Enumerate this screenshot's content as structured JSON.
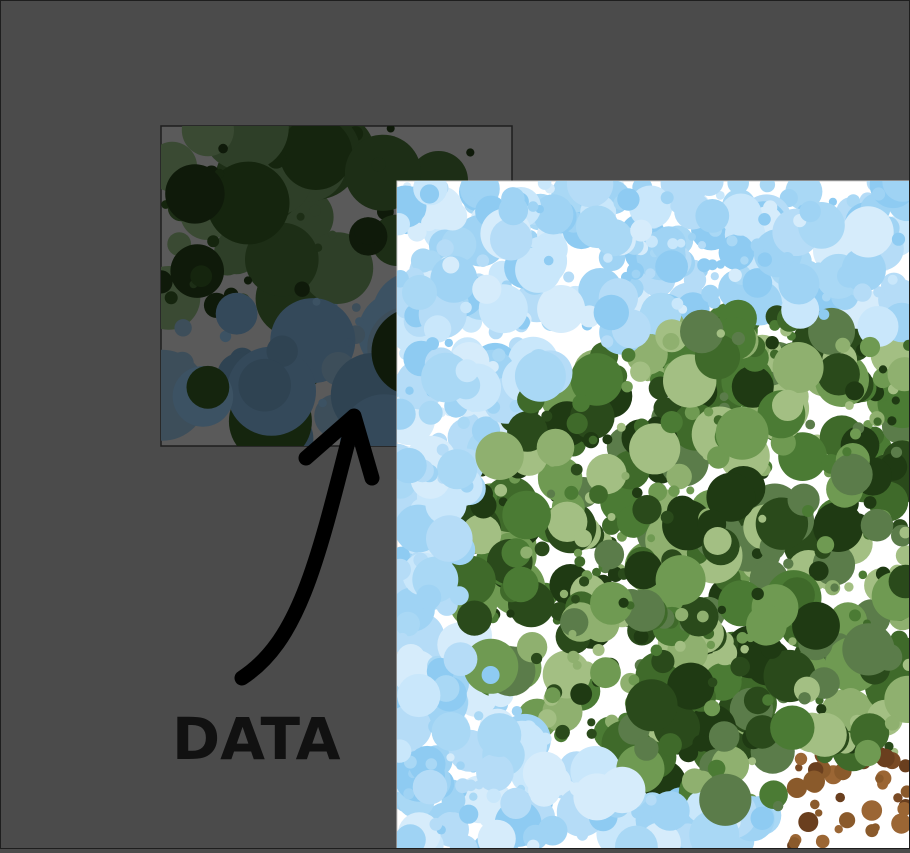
{
  "diagram": {
    "data_label": "DATA",
    "panels": [
      {
        "name": "data-sample-panel",
        "description_colors": [
          "#0f1a0a",
          "#2b3a26",
          "#34495a"
        ]
      },
      {
        "name": "tree-mosaic-panel",
        "description_colors": [
          "#a9d8f5",
          "#2f5a1f",
          "#7ea65e",
          "#8a5a2b"
        ]
      }
    ]
  },
  "colors": {
    "background": "#4b4b4b",
    "sky_light": "#c9e7fb",
    "sky_mid": "#9fd3f4",
    "leaf_dark": "#1f3a13",
    "leaf_mid": "#3f6a2a",
    "leaf_light": "#8fb06f",
    "trunk": "#7a4a24",
    "arrow": "#000000"
  }
}
